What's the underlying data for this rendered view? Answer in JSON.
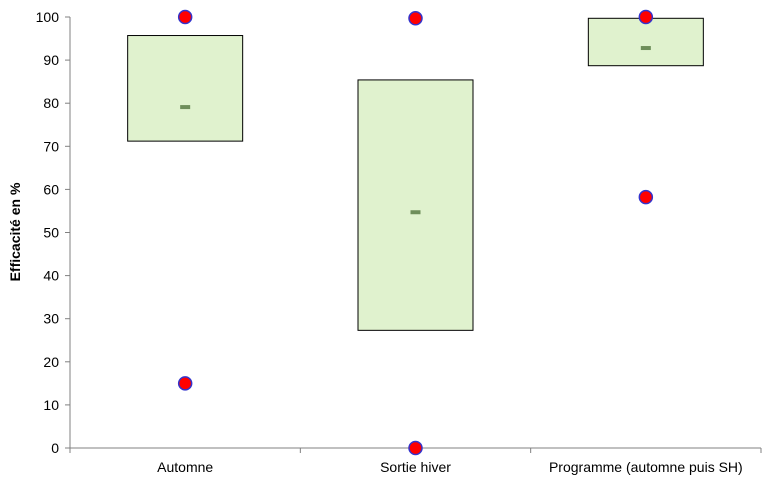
{
  "chart_data": {
    "type": "box",
    "title": "",
    "xlabel": "",
    "ylabel": "Efficacité en %",
    "ylim": [
      0,
      100
    ],
    "yticks": [
      0,
      10,
      20,
      30,
      40,
      50,
      60,
      70,
      80,
      90,
      100
    ],
    "grid": false,
    "legend": "none",
    "categories": [
      "Automne",
      "Sortie hiver",
      "Programme (automne puis SH)"
    ],
    "boxes": [
      {
        "q1": 71.2,
        "q3": 95.7,
        "median": 79.1,
        "min": 15.0,
        "max": 100.0
      },
      {
        "q1": 27.3,
        "q3": 85.4,
        "median": 54.7,
        "min": 0.0,
        "max": 99.7
      },
      {
        "q1": 88.7,
        "q3": 99.7,
        "median": 92.8,
        "min": 58.2,
        "max": 100.0
      }
    ],
    "colors": {
      "box_fill": "#E0F2CE",
      "box_stroke": "#000000",
      "median": "#6E8E5A",
      "point_fill": "#FF0000",
      "point_stroke": "#3333CC",
      "axis": "#808080"
    }
  }
}
